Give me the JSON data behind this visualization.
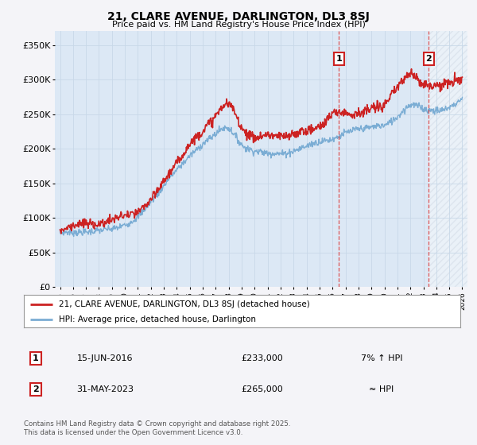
{
  "title": "21, CLARE AVENUE, DARLINGTON, DL3 8SJ",
  "subtitle": "Price paid vs. HM Land Registry's House Price Index (HPI)",
  "background_color": "#f4f4f8",
  "plot_bg_color": "#dce8f5",
  "hatch_bg_color": "#e8eef8",
  "ylabel": "",
  "ylim": [
    0,
    370000
  ],
  "yticks": [
    0,
    50000,
    100000,
    150000,
    200000,
    250000,
    300000,
    350000
  ],
  "ytick_labels": [
    "£0",
    "£50K",
    "£100K",
    "£150K",
    "£200K",
    "£250K",
    "£300K",
    "£350K"
  ],
  "year_start": 1995,
  "year_end": 2026,
  "marker1_year": 2016.5,
  "marker2_year": 2023.42,
  "marker1_date": "15-JUN-2016",
  "marker1_price": "£233,000",
  "marker1_hpi": "7% ↑ HPI",
  "marker2_date": "31-MAY-2023",
  "marker2_price": "£265,000",
  "marker2_hpi": "≈ HPI",
  "legend_label1": "21, CLARE AVENUE, DARLINGTON, DL3 8SJ (detached house)",
  "legend_label2": "HPI: Average price, detached house, Darlington",
  "footer": "Contains HM Land Registry data © Crown copyright and database right 2025.\nThis data is licensed under the Open Government Licence v3.0.",
  "line1_color": "#cc2222",
  "line2_color": "#7badd4",
  "marker_box_color": "#cc2222",
  "grid_color": "#c8d8e8",
  "vline1_color": "#dd4444",
  "vline2_color": "#dd4444"
}
